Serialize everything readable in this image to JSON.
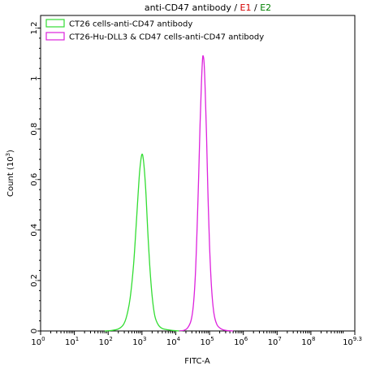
{
  "chart_data": {
    "type": "histogram",
    "title": {
      "prefix": "anti-CD47 antibody / ",
      "e1": "E1",
      "separator": " / ",
      "e2": "E2",
      "e1_color": "#d40000",
      "e2_color": "#008000"
    },
    "xlabel": "FITC-A",
    "ylabel": "Count",
    "ylabel_unit_base": "(10",
    "ylabel_unit_exp": "3",
    "ylabel_unit_close": ")",
    "x_scale": "log10",
    "xlim_exponent": [
      0,
      9.3
    ],
    "ylim": [
      0,
      1.25
    ],
    "x_ticks": [
      {
        "base": "10",
        "exp": "0",
        "value": 0
      },
      {
        "base": "10",
        "exp": "1",
        "value": 1
      },
      {
        "base": "10",
        "exp": "2",
        "value": 2
      },
      {
        "base": "10",
        "exp": "3",
        "value": 3
      },
      {
        "base": "10",
        "exp": "4",
        "value": 4
      },
      {
        "base": "10",
        "exp": "5",
        "value": 5
      },
      {
        "base": "10",
        "exp": "6",
        "value": 6
      },
      {
        "base": "10",
        "exp": "7",
        "value": 7
      },
      {
        "base": "10",
        "exp": "8",
        "value": 8
      },
      {
        "base": "10",
        "exp": "9.3",
        "value": 9.3
      }
    ],
    "y_ticks": [
      {
        "label": "0",
        "value": 0
      },
      {
        "label": "0.2",
        "value": 0.2
      },
      {
        "label": "0.4",
        "value": 0.4
      },
      {
        "label": "0.6",
        "value": 0.6
      },
      {
        "label": "0.8",
        "value": 0.8
      },
      {
        "label": "1",
        "value": 1.0
      },
      {
        "label": "1.2",
        "value": 1.2
      }
    ],
    "legend_position": "top-left",
    "series": [
      {
        "name": "CT26 cells-anti-CD47 antibody",
        "color": "#33dd33",
        "peak_log10": 3.0,
        "peak_count": 0.7,
        "points": [
          [
            1.9,
            0.0
          ],
          [
            2.1,
            0.002
          ],
          [
            2.3,
            0.008
          ],
          [
            2.45,
            0.025
          ],
          [
            2.55,
            0.06
          ],
          [
            2.65,
            0.13
          ],
          [
            2.75,
            0.26
          ],
          [
            2.82,
            0.4
          ],
          [
            2.88,
            0.53
          ],
          [
            2.93,
            0.63
          ],
          [
            2.97,
            0.68
          ],
          [
            3.0,
            0.7
          ],
          [
            3.03,
            0.69
          ],
          [
            3.07,
            0.64
          ],
          [
            3.12,
            0.54
          ],
          [
            3.17,
            0.4
          ],
          [
            3.23,
            0.26
          ],
          [
            3.3,
            0.14
          ],
          [
            3.38,
            0.06
          ],
          [
            3.48,
            0.025
          ],
          [
            3.6,
            0.01
          ],
          [
            3.8,
            0.004
          ],
          [
            4.0,
            0.001
          ],
          [
            4.2,
            0.0
          ]
        ]
      },
      {
        "name": "CT26-Hu-DLL3 & CD47 cells-anti-CD47 antibody",
        "color": "#dd22dd",
        "peak_log10": 4.8,
        "peak_count": 1.09,
        "points": [
          [
            4.1,
            0.0
          ],
          [
            4.25,
            0.003
          ],
          [
            4.35,
            0.012
          ],
          [
            4.45,
            0.04
          ],
          [
            4.52,
            0.1
          ],
          [
            4.58,
            0.22
          ],
          [
            4.63,
            0.4
          ],
          [
            4.68,
            0.62
          ],
          [
            4.72,
            0.82
          ],
          [
            4.76,
            0.98
          ],
          [
            4.79,
            1.07
          ],
          [
            4.81,
            1.09
          ],
          [
            4.84,
            1.06
          ],
          [
            4.87,
            0.96
          ],
          [
            4.91,
            0.78
          ],
          [
            4.95,
            0.56
          ],
          [
            5.0,
            0.34
          ],
          [
            5.06,
            0.17
          ],
          [
            5.13,
            0.07
          ],
          [
            5.22,
            0.025
          ],
          [
            5.35,
            0.008
          ],
          [
            5.5,
            0.002
          ],
          [
            5.7,
            0.0
          ]
        ]
      }
    ]
  }
}
